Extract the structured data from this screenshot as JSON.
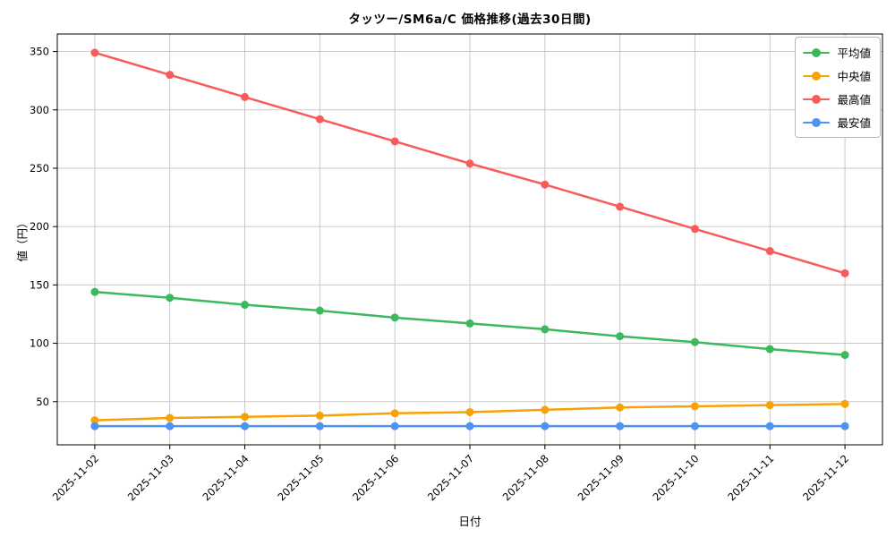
{
  "chart": {
    "title": "タッツー/SM6a/C 価格推移(過去30日間)",
    "xlabel": "日付",
    "ylabel": "値（円）"
  },
  "chart_data": {
    "type": "line",
    "title": "タッツー/SM6a/C 価格推移(過去30日間)",
    "xlabel": "日付",
    "ylabel": "値（円）",
    "categories": [
      "2025-11-02",
      "2025-11-03",
      "2025-11-04",
      "2025-11-05",
      "2025-11-06",
      "2025-11-07",
      "2025-11-08",
      "2025-11-09",
      "2025-11-10",
      "2025-11-11",
      "2025-11-12"
    ],
    "series": [
      {
        "name": "平均値",
        "color": "#3cb95f",
        "values": [
          144,
          139,
          133,
          128,
          122,
          117,
          112,
          106,
          101,
          95,
          90
        ]
      },
      {
        "name": "中央値",
        "color": "#f7a308",
        "values": [
          34,
          36,
          37,
          38,
          40,
          41,
          43,
          45,
          46,
          47,
          48
        ]
      },
      {
        "name": "最高値",
        "color": "#f95b5b",
        "values": [
          349,
          330,
          311,
          292,
          273,
          254,
          236,
          217,
          198,
          179,
          160
        ]
      },
      {
        "name": "最安値",
        "color": "#4d94f2",
        "values": [
          29,
          29,
          29,
          29,
          29,
          29,
          29,
          29,
          29,
          29,
          29
        ]
      }
    ],
    "yticks": [
      50,
      100,
      150,
      200,
      250,
      300,
      350
    ],
    "ylim": [
      13,
      365
    ],
    "grid": true,
    "legend_position": "upper right",
    "colors": {
      "grid": "#c9c9c9",
      "spine": "#000000",
      "tick_label": "#000000",
      "background": "#ffffff"
    }
  }
}
